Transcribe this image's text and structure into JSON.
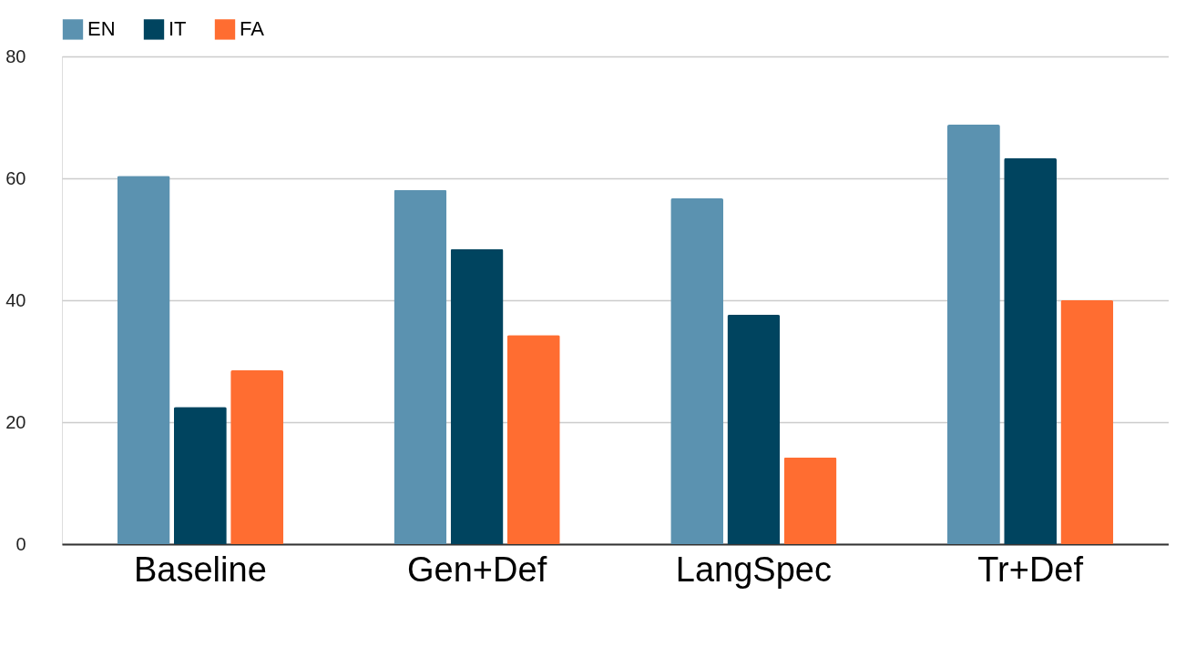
{
  "chart_data": {
    "type": "bar",
    "categories": [
      "Baseline",
      "Gen+Def",
      "LangSpec",
      "Tr+Def"
    ],
    "series": [
      {
        "name": "EN",
        "color": "#5b92b0",
        "values": [
          60.4,
          58.1,
          56.7,
          68.8
        ]
      },
      {
        "name": "IT",
        "color": "#00445f",
        "values": [
          22.5,
          48.4,
          37.6,
          63.3
        ]
      },
      {
        "name": "FA",
        "color": "#ff6d31",
        "values": [
          28.5,
          34.3,
          14.2,
          40.0
        ]
      }
    ],
    "ylim": [
      0,
      80
    ],
    "yticks": [
      0,
      20,
      40,
      60,
      80
    ],
    "grid": "y",
    "legend": "top"
  }
}
